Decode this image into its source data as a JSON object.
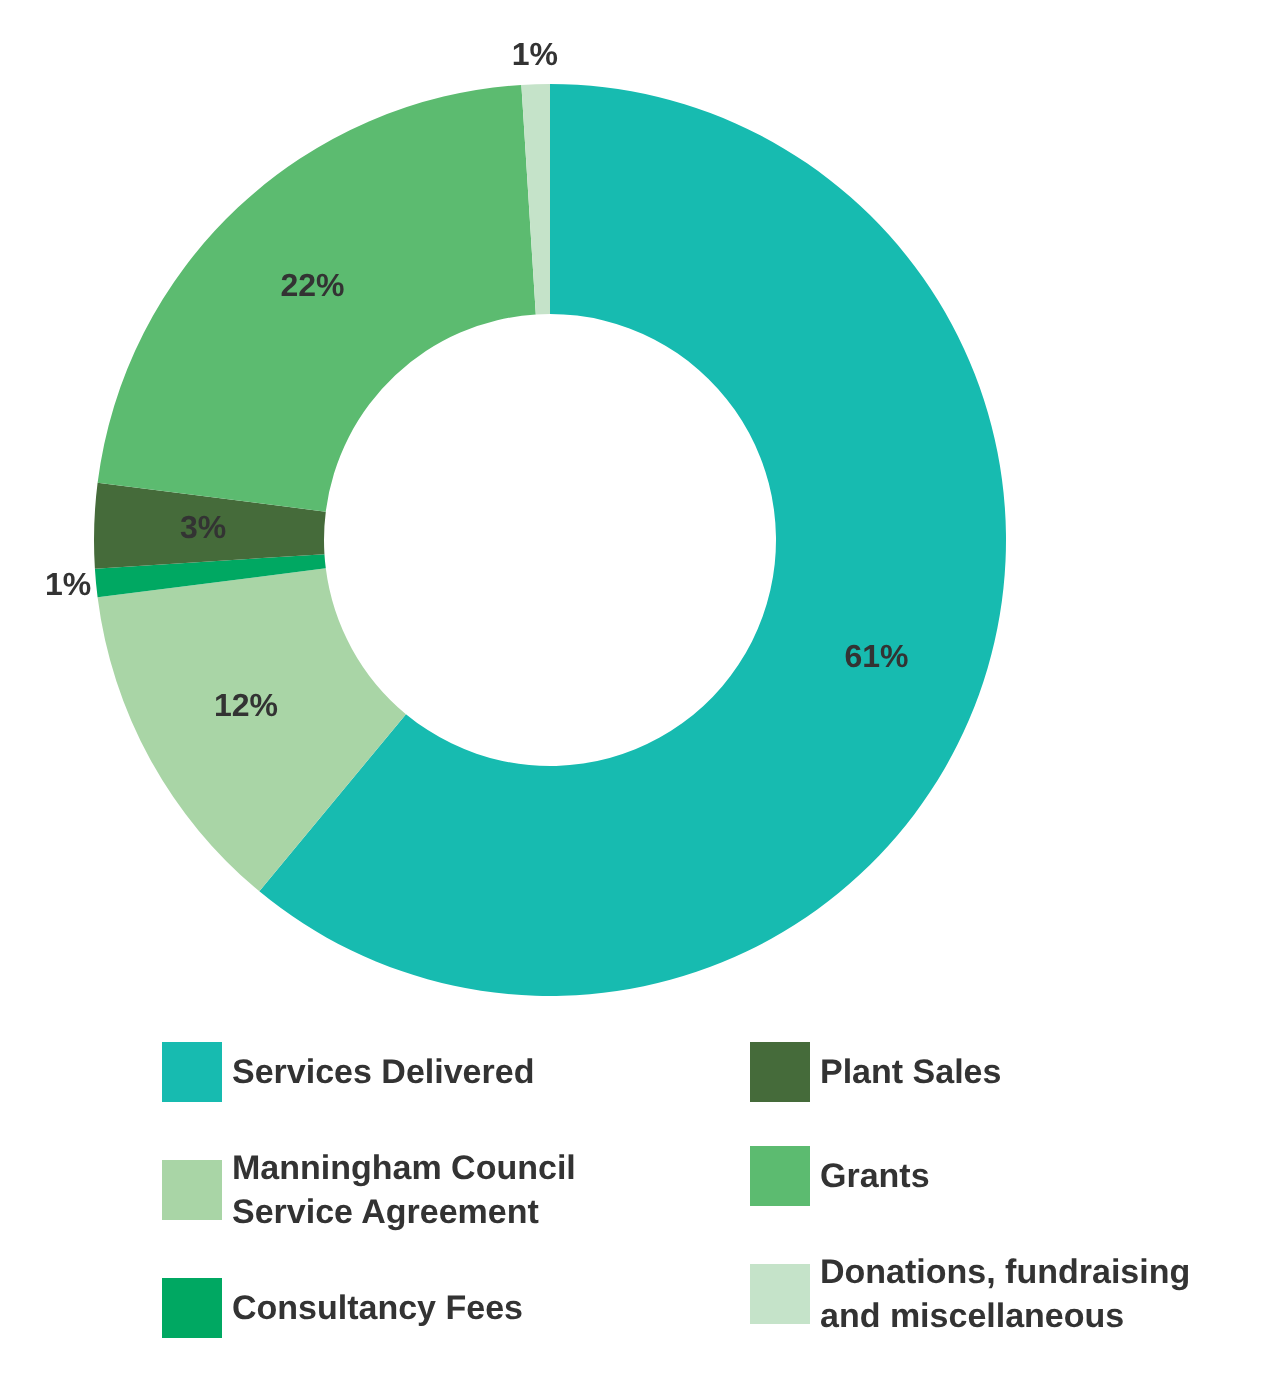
{
  "chart_data": {
    "type": "donut",
    "categories": [
      "Services Delivered",
      "Manningham Council Service Agreement",
      "Consultancy Fees",
      "Plant Sales",
      "Grants",
      "Donations, fundraising and miscellaneous"
    ],
    "values": [
      61,
      12,
      1,
      3,
      22,
      1
    ],
    "colors": [
      "#17bbb0",
      "#a9d5a6",
      "#00a862",
      "#456b3a",
      "#5cbb70",
      "#c5e3c9"
    ],
    "value_labels": [
      "61%",
      "12%",
      "1%",
      "3%",
      "22%",
      "1%"
    ],
    "legend": "bottom"
  }
}
